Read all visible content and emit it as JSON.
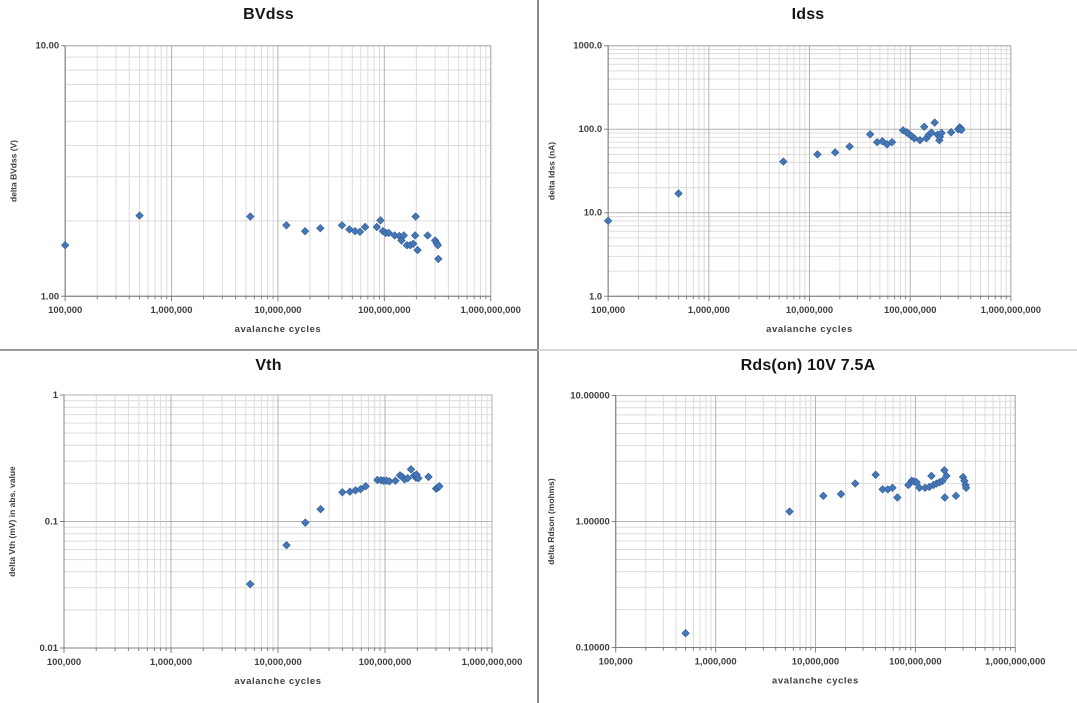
{
  "page": {
    "background": "#ffffff"
  },
  "style": {
    "marker_fill": "#4678b8",
    "marker_stroke": "#35629c",
    "major_grid": "#b3b3b3",
    "minor_grid": "#dcdcdc",
    "plot_border": "#b3b3b3",
    "axis_line": "#808080",
    "tick_label_color": "#3f3f3f",
    "title_color": "#161616"
  },
  "chart_data": [
    {
      "type": "scatter",
      "title": "BVdss",
      "xlabel": "avalanche cycles",
      "ylabel": "delta BVdss (V)",
      "x_scale": "log",
      "y_scale": "log",
      "x_range": [
        100000,
        1000000000
      ],
      "y_range": [
        1,
        10
      ],
      "x_ticks": [
        "100,000",
        "1,000,000",
        "10,000,000",
        "100,000,000",
        "1,000,000,000"
      ],
      "y_ticks": [
        "1.00",
        "10.00"
      ],
      "grid": "on",
      "legend": "none",
      "x": [
        100000,
        500000,
        5500000,
        12000000,
        18000000,
        25000000,
        40000000,
        47000000,
        53000000,
        59000000,
        66000000,
        85000000,
        92000000,
        97000000,
        103000000,
        110000000,
        125000000,
        138000000,
        145000000,
        152000000,
        163000000,
        175000000,
        187000000,
        195000000,
        197000000,
        205000000,
        255000000,
        300000000,
        310000000,
        318000000,
        322000000
      ],
      "y": [
        1.6,
        2.1,
        2.08,
        1.92,
        1.82,
        1.87,
        1.92,
        1.85,
        1.82,
        1.81,
        1.89,
        1.89,
        2.01,
        1.82,
        1.79,
        1.79,
        1.75,
        1.74,
        1.67,
        1.75,
        1.6,
        1.6,
        1.62,
        1.75,
        2.08,
        1.53,
        1.75,
        1.67,
        1.63,
        1.6,
        1.41
      ]
    },
    {
      "type": "scatter",
      "title": "Idss",
      "xlabel": "avalanche cycles",
      "ylabel": "delta Idss (nA)",
      "x_scale": "log",
      "y_scale": "log",
      "x_range": [
        100000,
        1000000000
      ],
      "y_range": [
        1,
        1000
      ],
      "x_ticks": [
        "100,000",
        "1,000,000",
        "10,000,000",
        "100,000,000",
        "1,000,000,000"
      ],
      "y_ticks": [
        "1.0",
        "10.0",
        "100.0",
        "1000.0"
      ],
      "grid": "on",
      "legend": "none",
      "x": [
        100000,
        500000,
        5500000,
        12000000,
        18000000,
        25000000,
        40000000,
        47000000,
        53000000,
        59000000,
        66000000,
        85000000,
        92000000,
        97000000,
        103000000,
        110000000,
        125000000,
        138000000,
        145000000,
        152000000,
        163000000,
        175000000,
        187000000,
        195000000,
        197000000,
        205000000,
        255000000,
        300000000,
        310000000,
        318000000,
        322000000
      ],
      "y": [
        8,
        17,
        41,
        50,
        53,
        62,
        87,
        70,
        72,
        66,
        70,
        97,
        92,
        88,
        83,
        78,
        74,
        107,
        78,
        85,
        91,
        120,
        86,
        74,
        81,
        90,
        92,
        100,
        105,
        103,
        98
      ]
    },
    {
      "type": "scatter",
      "title": "Vth",
      "xlabel": "avalanche cycles",
      "ylabel": "delta Vth (mV) in abs. value",
      "x_scale": "log",
      "y_scale": "log",
      "x_range": [
        100000,
        1000000000
      ],
      "y_range": [
        0.01,
        1
      ],
      "x_ticks": [
        "100,000",
        "1,000,000",
        "10,000,000",
        "100,000,000",
        "1,000,000,000"
      ],
      "y_ticks": [
        "0.01",
        "0.1",
        "1"
      ],
      "grid": "on",
      "legend": "none",
      "x": [
        5500000,
        12000000,
        18000000,
        25000000,
        40000000,
        47000000,
        53000000,
        59000000,
        66000000,
        85000000,
        92000000,
        97000000,
        103000000,
        110000000,
        125000000,
        138000000,
        145000000,
        152000000,
        163000000,
        175000000,
        187000000,
        195000000,
        197000000,
        205000000,
        255000000,
        300000000,
        310000000,
        318000000,
        322000000
      ],
      "y": [
        0.032,
        0.065,
        0.098,
        0.125,
        0.17,
        0.172,
        0.176,
        0.18,
        0.19,
        0.213,
        0.212,
        0.21,
        0.21,
        0.208,
        0.21,
        0.232,
        0.225,
        0.215,
        0.22,
        0.258,
        0.23,
        0.222,
        0.235,
        0.22,
        0.225,
        0.182,
        0.185,
        0.188,
        0.19
      ]
    },
    {
      "type": "scatter",
      "title": "Rds(on) 10V 7.5A",
      "xlabel": "avalanche cycles",
      "ylabel": "delta Rdson (mohms)",
      "x_scale": "log",
      "y_scale": "log",
      "x_range": [
        100000,
        1000000000
      ],
      "y_range": [
        0.1,
        10
      ],
      "x_ticks": [
        "100,000",
        "1,000,000",
        "10,000,000",
        "100,000,000",
        "1,000,000,000"
      ],
      "y_ticks": [
        "0.10000",
        "1.00000",
        "10.00000"
      ],
      "grid": "on",
      "legend": "none",
      "x": [
        500000,
        5500000,
        12000000,
        18000000,
        25000000,
        40000000,
        47000000,
        53000000,
        59000000,
        66000000,
        85000000,
        92000000,
        97000000,
        103000000,
        110000000,
        125000000,
        138000000,
        145000000,
        152000000,
        163000000,
        175000000,
        187000000,
        195000000,
        197000000,
        205000000,
        255000000,
        300000000,
        310000000,
        318000000,
        322000000
      ],
      "y": [
        0.13,
        1.2,
        1.6,
        1.65,
        2.0,
        2.35,
        1.8,
        1.8,
        1.85,
        1.55,
        1.95,
        2.1,
        2.08,
        2.05,
        1.85,
        1.85,
        1.88,
        2.3,
        1.95,
        2.0,
        2.05,
        2.1,
        2.55,
        1.55,
        2.3,
        1.6,
        2.25,
        2.1,
        1.95,
        1.85
      ]
    }
  ]
}
